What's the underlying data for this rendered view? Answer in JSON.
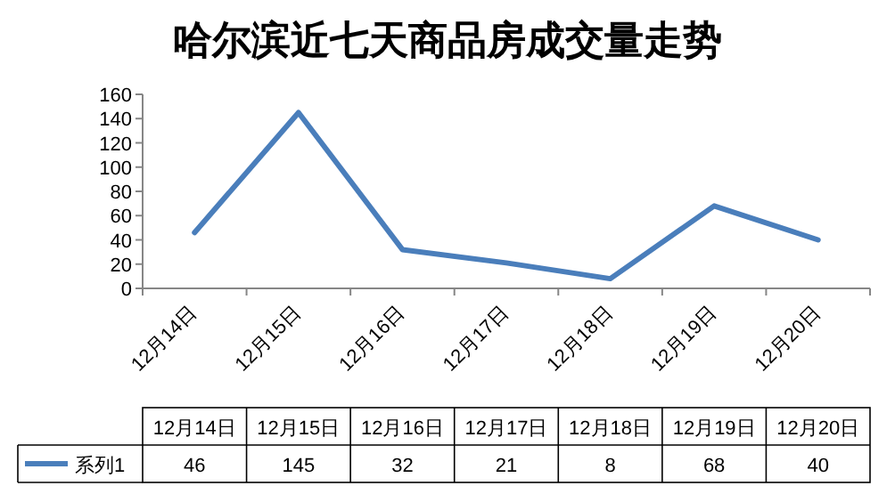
{
  "chart_data": {
    "type": "line",
    "title": "哈尔滨近七天商品房成交量走势",
    "categories": [
      "12月14日",
      "12月15日",
      "12月16日",
      "12月17日",
      "12月18日",
      "12月19日",
      "12月20日"
    ],
    "series": [
      {
        "name": "系列1",
        "color": "#4a7ebb",
        "values": [
          46,
          145,
          32,
          21,
          8,
          68,
          40
        ]
      }
    ],
    "ylim": [
      0,
      160
    ],
    "yticks": [
      0,
      20,
      40,
      60,
      80,
      100,
      120,
      140,
      160
    ],
    "grid": false,
    "legend": "bottom",
    "data_labels": true,
    "marker": "none",
    "line_style": "solid"
  }
}
